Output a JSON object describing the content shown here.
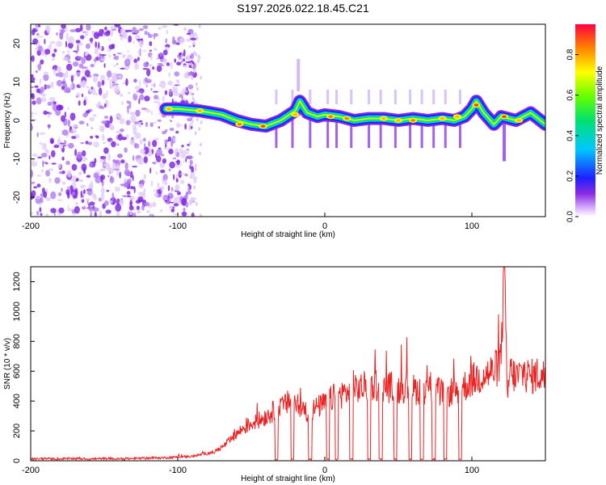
{
  "title": "S197.2026.022.18.45.C21",
  "chart_data": [
    {
      "type": "heatmap",
      "name": "spectrogram",
      "xlabel": "Height of straight line (km)",
      "ylabel": "Frequency (Hz)",
      "xlim": [
        -200,
        150
      ],
      "ylim": [
        -25,
        25
      ],
      "xticks": [
        "-200",
        "-100",
        "0",
        "100"
      ],
      "yticks": [
        "-20",
        "-10",
        "0",
        "10",
        "20"
      ],
      "colorbar": {
        "label": "Normalized spectral amplitude",
        "range": [
          0,
          0.95
        ],
        "ticks": [
          "0.0",
          "0.2",
          "0.4",
          "0.6",
          "0.8"
        ]
      },
      "ridge": [
        {
          "x": -108,
          "y": 3
        },
        {
          "x": -100,
          "y": 3
        },
        {
          "x": -85,
          "y": 2.5
        },
        {
          "x": -70,
          "y": 1.5
        },
        {
          "x": -60,
          "y": 0
        },
        {
          "x": -50,
          "y": -1
        },
        {
          "x": -40,
          "y": -1.5
        },
        {
          "x": -30,
          "y": 0
        },
        {
          "x": -20,
          "y": 2.5
        },
        {
          "x": -17,
          "y": 5
        },
        {
          "x": -12,
          "y": 2
        },
        {
          "x": -5,
          "y": 1
        },
        {
          "x": 0,
          "y": 1.5
        },
        {
          "x": 10,
          "y": 1
        },
        {
          "x": 20,
          "y": 0
        },
        {
          "x": 30,
          "y": 0.5
        },
        {
          "x": 40,
          "y": 0.5
        },
        {
          "x": 50,
          "y": 0
        },
        {
          "x": 60,
          "y": 0.5
        },
        {
          "x": 70,
          "y": 0
        },
        {
          "x": 80,
          "y": 0.5
        },
        {
          "x": 88,
          "y": 0
        },
        {
          "x": 95,
          "y": 1
        },
        {
          "x": 100,
          "y": 3
        },
        {
          "x": 103,
          "y": 5
        },
        {
          "x": 108,
          "y": 2
        },
        {
          "x": 115,
          "y": -1
        },
        {
          "x": 120,
          "y": 1
        },
        {
          "x": 130,
          "y": 0
        },
        {
          "x": 140,
          "y": 2
        },
        {
          "x": 150,
          "y": -1
        }
      ],
      "hotspots": [
        {
          "x": -106,
          "y": 3,
          "value": 0.85
        },
        {
          "x": -85,
          "y": 2.5,
          "value": 0.85
        },
        {
          "x": -58,
          "y": -1,
          "value": 0.9
        },
        {
          "x": -42,
          "y": -1.5,
          "value": 0.95
        },
        {
          "x": -20,
          "y": 1.5,
          "value": 0.85
        },
        {
          "x": 4,
          "y": 1,
          "value": 0.9
        },
        {
          "x": 15,
          "y": 0.5,
          "value": 0.9
        },
        {
          "x": 40,
          "y": 0.5,
          "value": 0.85
        },
        {
          "x": 50,
          "y": 0,
          "value": 0.85
        },
        {
          "x": 60,
          "y": 0,
          "value": 0.9
        },
        {
          "x": 80,
          "y": 0.5,
          "value": 0.85
        },
        {
          "x": 90,
          "y": 1,
          "value": 0.85
        },
        {
          "x": 103,
          "y": 4,
          "value": 0.95
        },
        {
          "x": 122,
          "y": 1,
          "value": 0.95
        },
        {
          "x": 132,
          "y": 0,
          "value": 0.85
        }
      ]
    },
    {
      "type": "line",
      "name": "snr",
      "xlabel": "Height of straight line (km)",
      "ylabel": "SNR (10 * v/v)",
      "xlim": [
        -200,
        150
      ],
      "ylim": [
        0,
        1300
      ],
      "xticks": [
        "-200",
        "-100",
        "0",
        "100"
      ],
      "yticks": [
        "0",
        "200",
        "400",
        "600",
        "800",
        "1000",
        "1200"
      ],
      "color": "#ee2020",
      "series": [
        {
          "name": "SNR",
          "x": [
            -200,
            -190,
            -180,
            -170,
            -160,
            -150,
            -140,
            -130,
            -120,
            -110,
            -100,
            -90,
            -85,
            -80,
            -75,
            -70,
            -65,
            -60,
            -55,
            -50,
            -45,
            -40,
            -35,
            -30,
            -25,
            -22,
            -20,
            -15,
            -10,
            -5,
            0,
            5,
            10,
            15,
            20,
            25,
            30,
            35,
            40,
            45,
            50,
            55,
            60,
            65,
            70,
            75,
            80,
            85,
            90,
            95,
            100,
            105,
            110,
            115,
            118,
            120,
            122,
            124,
            126,
            130,
            135,
            140,
            145,
            150
          ],
          "y": [
            10,
            15,
            12,
            15,
            12,
            14,
            12,
            15,
            18,
            20,
            25,
            30,
            40,
            50,
            60,
            90,
            130,
            180,
            220,
            250,
            270,
            300,
            330,
            350,
            390,
            440,
            380,
            340,
            330,
            360,
            380,
            420,
            440,
            460,
            470,
            490,
            500,
            510,
            500,
            490,
            480,
            500,
            480,
            470,
            490,
            470,
            450,
            460,
            470,
            500,
            540,
            560,
            580,
            600,
            640,
            700,
            1300,
            420,
            600,
            560,
            590,
            560,
            580,
            560
          ]
        }
      ],
      "dropouts": [
        -33,
        -22,
        -10,
        2,
        8,
        18,
        30,
        38,
        48,
        58,
        66,
        74,
        82,
        92
      ]
    }
  ]
}
